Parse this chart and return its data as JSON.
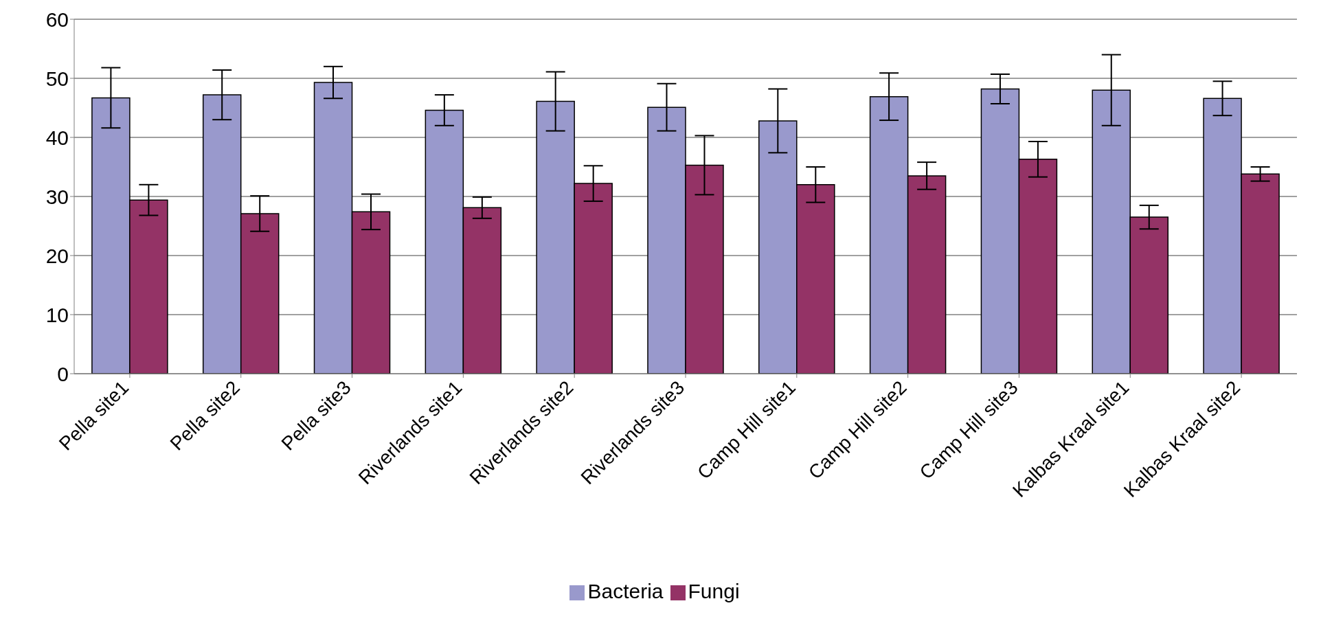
{
  "chart_data": {
    "type": "bar",
    "categories": [
      "Pella site1",
      "Pella site2",
      "Pella site3",
      "Riverlands site1",
      "Riverlands site2",
      "Riverlands site3",
      "Camp Hill site1",
      "Camp Hill site2",
      "Camp Hill site3",
      "Kalbas Kraal site1",
      "Kalbas Kraal site2"
    ],
    "series": [
      {
        "name": "Bacteria",
        "color": "#9999cc",
        "values": [
          46.7,
          47.2,
          49.3,
          44.6,
          46.1,
          45.1,
          42.8,
          46.9,
          48.2,
          48.0,
          46.6
        ],
        "errors": [
          5.1,
          4.2,
          2.7,
          2.6,
          5.0,
          4.0,
          5.4,
          4.0,
          2.5,
          6.0,
          2.9
        ]
      },
      {
        "name": "Fungi",
        "color": "#943366",
        "values": [
          29.4,
          27.1,
          27.4,
          28.1,
          32.2,
          35.3,
          32.0,
          33.5,
          36.3,
          26.5,
          33.8
        ],
        "errors": [
          2.6,
          3.0,
          3.0,
          1.8,
          3.0,
          5.0,
          3.0,
          2.3,
          3.0,
          2.0,
          1.2
        ]
      }
    ],
    "ylim": [
      0,
      60
    ],
    "yticks": [
      0,
      10,
      20,
      30,
      40,
      50,
      60
    ],
    "grid": "y",
    "legend": "bottom"
  }
}
